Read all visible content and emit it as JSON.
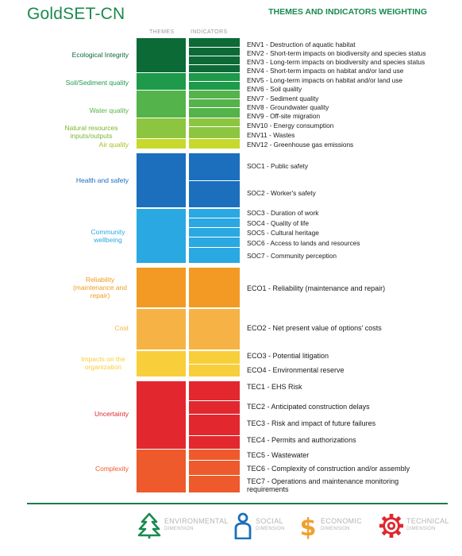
{
  "header": {
    "title": "GoldSET-CN",
    "subtitle": "THEMES AND INDICATORS WEIGHTING",
    "col_themes": "THEMES",
    "col_indicators": "INDICATORS"
  },
  "dimensions": [
    {
      "key": "environmental",
      "color": "#1a8a4f",
      "themes": [
        {
          "label": "Ecological Integrity",
          "color": "#0b6a36",
          "indicators": [
            {
              "code": "ENV1",
              "text": "Destruction of aquatic habitat"
            },
            {
              "code": "ENV2",
              "text": "Short-term impacts on biodiversity and species status"
            },
            {
              "code": "ENV3",
              "text": "Long-term impacts on biodiversity and species status"
            },
            {
              "code": "ENV4",
              "text": "Short-term impacts on habitat and/or land use"
            }
          ]
        },
        {
          "label": "Soil/Sediment quality",
          "color": "#1e9a4a",
          "indicators": [
            {
              "code": "ENV5",
              "text": "Long-term impacts on habitat and/or land use"
            },
            {
              "code": "ENV6",
              "text": "Soil quality"
            }
          ]
        },
        {
          "label": "Water quality",
          "color": "#54b34a",
          "indicators": [
            {
              "code": "ENV7",
              "text": "Sediment quality"
            },
            {
              "code": "ENV8",
              "text": "Groundwater quality"
            },
            {
              "code": "ENV9",
              "text": "Off-site migration"
            }
          ]
        },
        {
          "label": "Natural resources inputs/outputs",
          "color": "#8cc540",
          "indicators": [
            {
              "code": "ENV10",
              "text": "Energy consumption"
            },
            {
              "code": "ENV11",
              "text": "Wastes"
            }
          ]
        },
        {
          "label": "Air quality",
          "color": "#c7d92c",
          "indicators": [
            {
              "code": "ENV12",
              "text": "Greenhouse gas emissions"
            }
          ]
        }
      ]
    },
    {
      "key": "social",
      "color": "#1e6fb8",
      "themes": [
        {
          "label": "Health and safety",
          "color": "#1b6fbd",
          "indicators": [
            {
              "code": "SOC1",
              "text": "Public safety"
            },
            {
              "code": "SOC2",
              "text": "Worker's safety"
            }
          ]
        },
        {
          "label": "Community wellbeing",
          "color": "#2aa8e2",
          "indicators": [
            {
              "code": "SOC3",
              "text": "Duration of work"
            },
            {
              "code": "SOC4",
              "text": "Quality of life"
            },
            {
              "code": "SOC5",
              "text": "Cultural heritage"
            },
            {
              "code": "SOC6",
              "text": "Access to lands and resources"
            },
            {
              "code": "SOC7",
              "text": "Community perception"
            }
          ]
        }
      ]
    },
    {
      "key": "economic",
      "color": "#f0a030",
      "themes": [
        {
          "label": "Reliability (maintenance and repair)",
          "color": "#f29a24",
          "indicators": [
            {
              "code": "ECO1",
              "text": "Reliability (maintenance and repair)"
            }
          ]
        },
        {
          "label": "Cost",
          "color": "#f6b244",
          "indicators": [
            {
              "code": "ECO2",
              "text": "Net present value of options' costs"
            }
          ]
        },
        {
          "label": "Impacts on the organization",
          "color": "#f8cf3a",
          "indicators": [
            {
              "code": "ECO3",
              "text": "Potential litigation"
            },
            {
              "code": "ECO4",
              "text": "Environmental reserve"
            }
          ]
        }
      ]
    },
    {
      "key": "technical",
      "color": "#e0272e",
      "themes": [
        {
          "label": "Uncertainty",
          "color": "#e2282e",
          "indicators": [
            {
              "code": "TEC1",
              "text": "EHS Risk"
            },
            {
              "code": "TEC2",
              "text": "Anticipated construction delays"
            },
            {
              "code": "TEC3",
              "text": "Risk and impact of future failures"
            },
            {
              "code": "TEC4",
              "text": "Permits and authorizations"
            }
          ]
        },
        {
          "label": "Complexity",
          "color": "#ee5a2c",
          "indicators": [
            {
              "code": "TEC5",
              "text": "Wastewater"
            },
            {
              "code": "TEC6",
              "text": "Complexity of construction and/or assembly"
            },
            {
              "code": "TEC7",
              "text": "Operations and maintenance monitoring requirements"
            }
          ]
        }
      ]
    }
  ],
  "legend": [
    {
      "key": "environmental",
      "name": "ENVIRONMENTAL",
      "sub": "DIMENSION",
      "color": "#1a8a4f",
      "icon": "tree-icon"
    },
    {
      "key": "social",
      "name": "SOCIAL",
      "sub": "DIMENSION",
      "color": "#1e6fb8",
      "icon": "person-icon"
    },
    {
      "key": "economic",
      "name": "ECONOMIC",
      "sub": "DIMENSION",
      "color": "#f0a030",
      "icon": "dollar-icon"
    },
    {
      "key": "technical",
      "name": "TECHNICAL",
      "sub": "DIMENSION",
      "color": "#e0272e",
      "icon": "gear-icon"
    }
  ]
}
